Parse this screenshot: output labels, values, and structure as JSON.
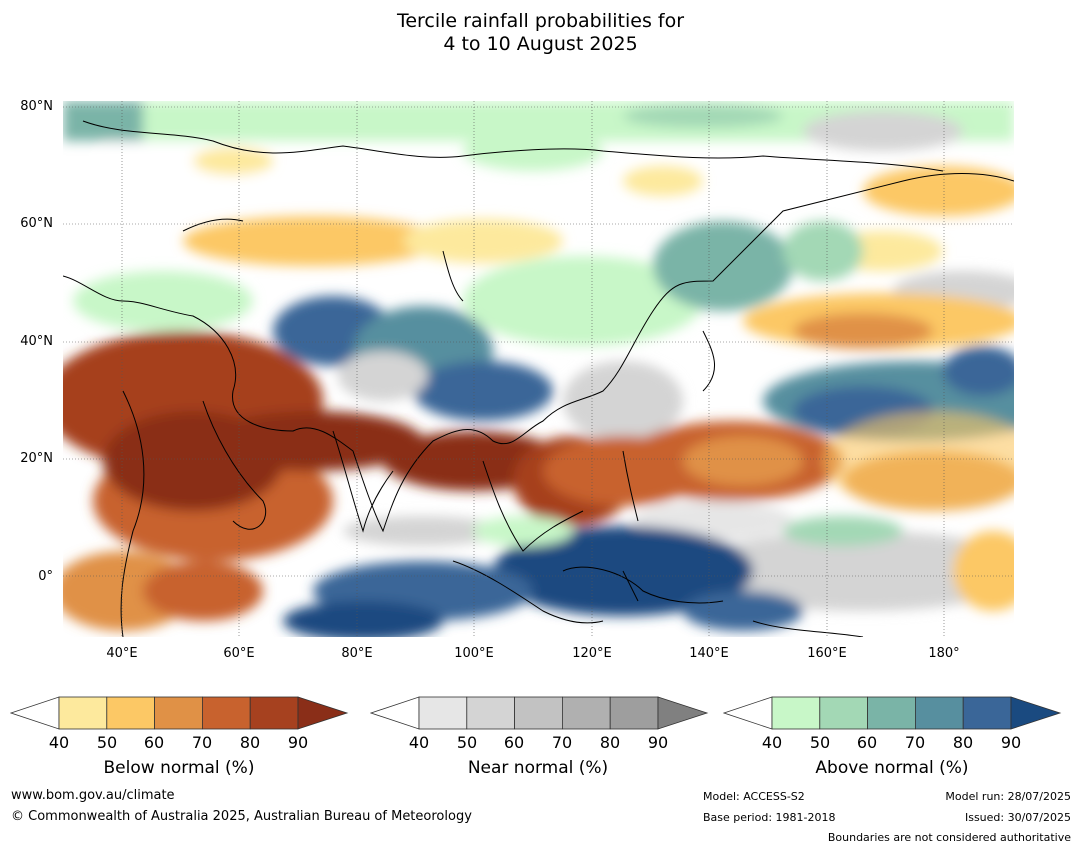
{
  "title_line1": "Tercile rainfall probabilities for",
  "title_line2": "4 to 10 August 2025",
  "lat_labels": [
    "80°N",
    "60°N",
    "40°N",
    "20°N",
    "0°"
  ],
  "lon_labels": [
    "40°E",
    "60°E",
    "80°E",
    "100°E",
    "120°E",
    "140°E",
    "160°E",
    "180°"
  ],
  "legends": [
    {
      "title": "Below normal (%)",
      "ticks": [
        "40",
        "50",
        "60",
        "70",
        "80",
        "90"
      ],
      "colors": [
        "#ffffff",
        "#fde99d",
        "#fcc865",
        "#e09146",
        "#c8622e",
        "#a6411f",
        "#8a2e18"
      ]
    },
    {
      "title": "Near normal (%)",
      "ticks": [
        "40",
        "50",
        "60",
        "70",
        "80",
        "90"
      ],
      "colors": [
        "#ffffff",
        "#e6e6e6",
        "#d4d4d4",
        "#c2c2c2",
        "#b0b0b0",
        "#9e9e9e",
        "#808080"
      ]
    },
    {
      "title": "Above normal (%)",
      "ticks": [
        "40",
        "50",
        "60",
        "70",
        "80",
        "90"
      ],
      "colors": [
        "#ffffff",
        "#c8f7c8",
        "#a3d8b5",
        "#7ab4a7",
        "#578f9f",
        "#3a6698",
        "#1a4a80"
      ]
    }
  ],
  "footer": {
    "website": "www.bom.gov.au/climate",
    "copyright": "© Commonwealth of Australia 2025, Australian Bureau of Meteorology",
    "model": "Model: ACCESS-S2",
    "base_period": "Base period: 1981-2018",
    "model_run": "Model run: 28/07/2025",
    "issued": "Issued: 30/07/2025",
    "disclaimer": "Boundaries are not considered authoritative"
  }
}
